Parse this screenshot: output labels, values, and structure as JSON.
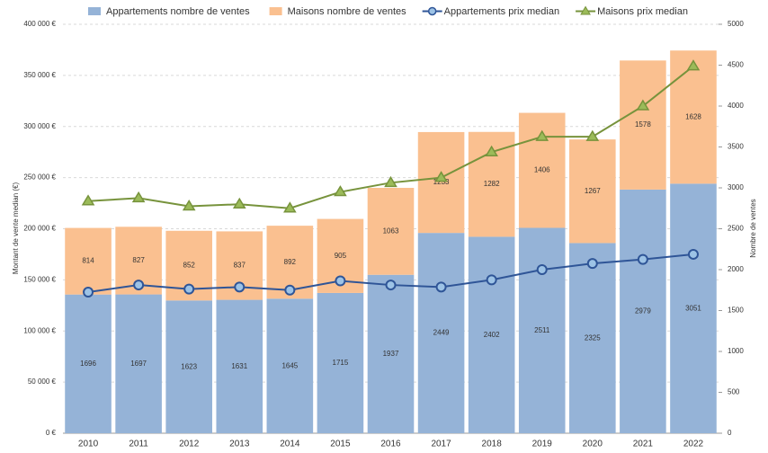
{
  "chart_data": {
    "type": "bar",
    "categories": [
      "2010",
      "2011",
      "2012",
      "2013",
      "2014",
      "2015",
      "2016",
      "2017",
      "2018",
      "2019",
      "2020",
      "2021",
      "2022"
    ],
    "series": [
      {
        "name": "Appartements nombre de ventes",
        "type": "bar",
        "axis": "y2",
        "color": "#95b3d7",
        "values": [
          1696,
          1697,
          1623,
          1631,
          1645,
          1715,
          1937,
          2449,
          2402,
          2511,
          2325,
          2979,
          3051
        ]
      },
      {
        "name": "Maisons nombre de ventes",
        "type": "bar",
        "axis": "y2",
        "color": "#fac090",
        "values": [
          814,
          827,
          852,
          837,
          892,
          905,
          1063,
          1233,
          1282,
          1406,
          1267,
          1578,
          1628
        ]
      },
      {
        "name": "Appartements prix median",
        "type": "line",
        "axis": "y",
        "color": "#2f5597",
        "marker": "circle",
        "values": [
          138000,
          145000,
          141000,
          143000,
          140000,
          149000,
          145000,
          143000,
          150000,
          160000,
          166000,
          170000,
          175000
        ]
      },
      {
        "name": "Maisons prix median",
        "type": "line",
        "axis": "y",
        "color": "#77933c",
        "marker": "triangle",
        "values": [
          227000,
          230000,
          222000,
          224000,
          220000,
          236000,
          245000,
          250000,
          275000,
          290000,
          290000,
          320000,
          359000
        ]
      }
    ],
    "ylabel": "Montant de vente median (€)",
    "y2label": "Nombre de ventes",
    "ylim": [
      0,
      400000
    ],
    "yticks": [
      {
        "value": 0,
        "label": "0 €"
      },
      {
        "value": 50000,
        "label": "50 000 €"
      },
      {
        "value": 100000,
        "label": "100 000 €"
      },
      {
        "value": 150000,
        "label": "150 000 €"
      },
      {
        "value": 200000,
        "label": "200 000 €"
      },
      {
        "value": 250000,
        "label": "250 000 €"
      },
      {
        "value": 300000,
        "label": "300 000 €"
      },
      {
        "value": 350000,
        "label": "350 000 €"
      },
      {
        "value": 400000,
        "label": "400 000 €"
      }
    ],
    "y2lim": [
      0,
      5000
    ],
    "y2ticks": [
      0,
      500,
      1000,
      1500,
      2000,
      2500,
      3000,
      3500,
      4000,
      4500,
      5000
    ],
    "grid": true,
    "legend": "top"
  }
}
